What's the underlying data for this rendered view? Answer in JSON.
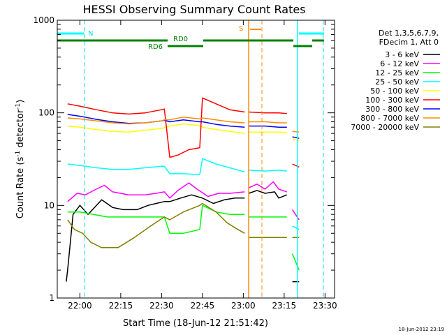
{
  "chart_data": {
    "type": "line",
    "title": "HESSI Observing Summary Count Rates",
    "xlabel": "Start Time (18-Jun-12 21:51:42)",
    "ylabel": "Count Rate (s",
    "ylabel_sup": "-1",
    "ylabel_mid": " detector",
    "ylabel_end": ")",
    "y_scale": "log",
    "ylim": [
      1,
      1000
    ],
    "xlim": [
      "21:51:42",
      "23:33:30"
    ],
    "x_ticks": [
      "22:00",
      "22:15",
      "22:30",
      "22:45",
      "23:00",
      "23:15",
      "23:30"
    ],
    "y_ticks": [
      "1",
      "10",
      "100",
      "1000"
    ],
    "grid": false,
    "legend_position": "right",
    "legend_header": [
      "Det 1,3,5,6,7,9,",
      "FDecim 1, Att 0"
    ],
    "timestamp": "18-Jun-2012 23:19",
    "annotations": {
      "night_label": "N",
      "saa_label": "S",
      "rd0_label": "RD0",
      "rd6_label": "RD6"
    },
    "series": [
      {
        "name": "3 - 6 keV",
        "color": "#000000",
        "points": [
          [
            "21:55:00",
            1.5
          ],
          [
            "21:55:30",
            2.0
          ],
          [
            "21:57:30",
            8.0
          ],
          [
            "22:00:00",
            10.0
          ],
          [
            "22:03:00",
            8.0
          ],
          [
            "22:08:00",
            11.5
          ],
          [
            "22:12:00",
            9.5
          ],
          [
            "22:16:00",
            9.0
          ],
          [
            "22:21:00",
            9.0
          ],
          [
            "22:25:00",
            10.0
          ],
          [
            "22:28:00",
            10.5
          ],
          [
            "22:31:00",
            11.0
          ],
          [
            "22:33:00",
            11.0
          ],
          [
            "22:37:00",
            12.0
          ],
          [
            "22:41:00",
            13.0
          ],
          [
            "22:45:00",
            12.0
          ],
          [
            "22:49:00",
            10.5
          ],
          [
            "22:53:00",
            11.5
          ],
          [
            "22:57:00",
            12.0
          ],
          [
            "23:00:30",
            12.0
          ],
          [
            "23:01:00",
            null
          ],
          [
            "23:02:00",
            13.5
          ],
          [
            "23:05:00",
            14.5
          ],
          [
            "23:08:00",
            13.5
          ],
          [
            "23:11:30",
            14.0
          ],
          [
            "23:13:00",
            12.0
          ],
          [
            "23:16:00",
            13.0
          ],
          [
            "23:17:00",
            null
          ],
          [
            "23:18:00",
            1.5
          ],
          [
            "23:20:30",
            1.5
          ]
        ]
      },
      {
        "name": "6 - 12 keV",
        "color": "#ff00ff",
        "points": [
          [
            "21:55:00",
            null
          ],
          [
            "21:55:30",
            11.0
          ],
          [
            "21:59:00",
            13.5
          ],
          [
            "22:02:00",
            13.0
          ],
          [
            "22:06:00",
            15.0
          ],
          [
            "22:09:00",
            16.5
          ],
          [
            "22:12:00",
            14.0
          ],
          [
            "22:18:00",
            13.0
          ],
          [
            "22:24:00",
            13.0
          ],
          [
            "22:28:00",
            13.5
          ],
          [
            "22:31:00",
            14.0
          ],
          [
            "22:33:00",
            12.0
          ],
          [
            "22:36:00",
            14.5
          ],
          [
            "22:40:00",
            17.5
          ],
          [
            "22:43:00",
            15.0
          ],
          [
            "22:47:00",
            12.5
          ],
          [
            "22:51:00",
            13.5
          ],
          [
            "22:55:00",
            13.5
          ],
          [
            "23:00:30",
            14.0
          ],
          [
            "23:01:00",
            null
          ],
          [
            "23:02:00",
            15.5
          ],
          [
            "23:05:00",
            17.0
          ],
          [
            "23:08:00",
            15.0
          ],
          [
            "23:11:00",
            18.0
          ],
          [
            "23:13:00",
            15.0
          ],
          [
            "23:16:00",
            14.0
          ],
          [
            "23:17:00",
            null
          ],
          [
            "23:18:00",
            9.0
          ],
          [
            "23:20:30",
            7.0
          ]
        ]
      },
      {
        "name": "12 - 25 keV",
        "color": "#00ff00",
        "points": [
          [
            "21:55:00",
            null
          ],
          [
            "21:55:30",
            8.5
          ],
          [
            "22:00:00",
            8.5
          ],
          [
            "22:05:00",
            8.0
          ],
          [
            "22:10:00",
            7.5
          ],
          [
            "22:15:00",
            7.5
          ],
          [
            "22:20:00",
            7.5
          ],
          [
            "22:25:00",
            7.5
          ],
          [
            "22:30:00",
            7.5
          ],
          [
            "22:31:00",
            7.5
          ],
          [
            "22:33:00",
            5.0
          ],
          [
            "22:38:00",
            5.0
          ],
          [
            "22:44:00",
            5.5
          ],
          [
            "22:45:00",
            10.0
          ],
          [
            "22:50:00",
            8.5
          ],
          [
            "22:55:00",
            8.0
          ],
          [
            "23:00:30",
            8.0
          ],
          [
            "23:01:00",
            null
          ],
          [
            "23:02:00",
            7.5
          ],
          [
            "23:08:00",
            7.5
          ],
          [
            "23:13:00",
            7.5
          ],
          [
            "23:16:00",
            7.5
          ],
          [
            "23:17:00",
            null
          ],
          [
            "23:18:00",
            3.0
          ],
          [
            "23:20:30",
            2.0
          ]
        ]
      },
      {
        "name": "25 - 50 keV",
        "color": "#00ffff",
        "points": [
          [
            "21:55:00",
            null
          ],
          [
            "21:55:30",
            28.0
          ],
          [
            "22:00:00",
            27.0
          ],
          [
            "22:06:00",
            25.5
          ],
          [
            "22:12:00",
            24.5
          ],
          [
            "22:18:00",
            24.5
          ],
          [
            "22:24:00",
            25.5
          ],
          [
            "22:30:00",
            26.5
          ],
          [
            "22:31:00",
            26.5
          ],
          [
            "22:33:00",
            22.0
          ],
          [
            "22:38:00",
            22.0
          ],
          [
            "22:44:00",
            21.5
          ],
          [
            "22:45:00",
            32.0
          ],
          [
            "22:50:00",
            28.0
          ],
          [
            "22:55:00",
            25.5
          ],
          [
            "23:00:30",
            23.0
          ],
          [
            "23:01:00",
            null
          ],
          [
            "23:02:00",
            24.0
          ],
          [
            "23:08:00",
            23.5
          ],
          [
            "23:13:00",
            24.0
          ],
          [
            "23:16:00",
            23.5
          ],
          [
            "23:17:00",
            null
          ],
          [
            "23:18:00",
            6.0
          ],
          [
            "23:20:30",
            5.5
          ]
        ]
      },
      {
        "name": "50 - 100 keV",
        "color": "#ffff00",
        "points": [
          [
            "21:55:00",
            null
          ],
          [
            "21:55:30",
            72.0
          ],
          [
            "22:00:00",
            70.0
          ],
          [
            "22:06:00",
            66.0
          ],
          [
            "22:12:00",
            63.0
          ],
          [
            "22:18:00",
            62.0
          ],
          [
            "22:24:00",
            65.0
          ],
          [
            "22:30:00",
            68.0
          ],
          [
            "22:31:00",
            69.0
          ],
          [
            "22:33:00",
            72.0
          ],
          [
            "22:38:00",
            76.0
          ],
          [
            "22:44:00",
            73.0
          ],
          [
            "22:45:00",
            70.0
          ],
          [
            "22:50:00",
            66.0
          ],
          [
            "22:55:00",
            63.0
          ],
          [
            "23:00:30",
            60.0
          ],
          [
            "23:01:00",
            null
          ],
          [
            "23:02:00",
            62.0
          ],
          [
            "23:08:00",
            62.0
          ],
          [
            "23:13:00",
            62.0
          ],
          [
            "23:16:00",
            61.0
          ],
          [
            "23:17:00",
            null
          ],
          [
            "23:18:00",
            52.0
          ],
          [
            "23:20:30",
            50.0
          ]
        ]
      },
      {
        "name": "100 - 300 keV",
        "color": "#ff0000",
        "points": [
          [
            "21:55:00",
            null
          ],
          [
            "21:55:30",
            125.0
          ],
          [
            "22:00:00",
            118.0
          ],
          [
            "22:06:00",
            108.0
          ],
          [
            "22:12:00",
            100.0
          ],
          [
            "22:18:00",
            97.0
          ],
          [
            "22:24:00",
            100.0
          ],
          [
            "22:30:00",
            108.0
          ],
          [
            "22:31:00",
            110.0
          ],
          [
            "22:33:00",
            33.0
          ],
          [
            "22:36:00",
            35.0
          ],
          [
            "22:40:00",
            40.0
          ],
          [
            "22:44:00",
            42.0
          ],
          [
            "22:45:00",
            145.0
          ],
          [
            "22:50:00",
            125.0
          ],
          [
            "22:55:00",
            108.0
          ],
          [
            "23:00:30",
            102.0
          ],
          [
            "23:01:00",
            null
          ],
          [
            "23:02:00",
            102.0
          ],
          [
            "23:08:00",
            100.0
          ],
          [
            "23:13:00",
            100.0
          ],
          [
            "23:16:00",
            98.0
          ],
          [
            "23:17:00",
            null
          ],
          [
            "23:18:00",
            28.0
          ],
          [
            "23:20:30",
            26.0
          ]
        ]
      },
      {
        "name": "300 - 800 keV",
        "color": "#0000ff",
        "points": [
          [
            "21:55:00",
            null
          ],
          [
            "21:55:30",
            96.0
          ],
          [
            "22:00:00",
            92.0
          ],
          [
            "22:06:00",
            85.0
          ],
          [
            "22:12:00",
            80.0
          ],
          [
            "22:18:00",
            77.0
          ],
          [
            "22:24:00",
            78.0
          ],
          [
            "22:30:00",
            82.0
          ],
          [
            "22:31:00",
            83.0
          ],
          [
            "22:33:00",
            80.0
          ],
          [
            "22:38:00",
            84.0
          ],
          [
            "22:44:00",
            80.0
          ],
          [
            "22:45:00",
            80.0
          ],
          [
            "22:50:00",
            75.0
          ],
          [
            "22:55:00",
            72.0
          ],
          [
            "23:00:30",
            70.0
          ],
          [
            "23:01:00",
            null
          ],
          [
            "23:02:00",
            72.0
          ],
          [
            "23:08:00",
            72.0
          ],
          [
            "23:13:00",
            70.0
          ],
          [
            "23:16:00",
            70.0
          ],
          [
            "23:17:00",
            null
          ],
          [
            "23:18:00",
            55.0
          ],
          [
            "23:20:30",
            53.0
          ]
        ]
      },
      {
        "name": "800 - 7000 keV",
        "color": "#ff8c00",
        "points": [
          [
            "21:55:00",
            null
          ],
          [
            "21:55:30",
            88.0
          ],
          [
            "22:00:00",
            86.0
          ],
          [
            "22:06:00",
            82.0
          ],
          [
            "22:12:00",
            78.0
          ],
          [
            "22:18:00",
            76.0
          ],
          [
            "22:24:00",
            78.0
          ],
          [
            "22:30:00",
            82.0
          ],
          [
            "22:31:00",
            84.0
          ],
          [
            "22:33:00",
            84.0
          ],
          [
            "22:38:00",
            90.0
          ],
          [
            "22:44:00",
            86.0
          ],
          [
            "22:45:00",
            88.0
          ],
          [
            "22:50:00",
            84.0
          ],
          [
            "22:55:00",
            80.0
          ],
          [
            "23:00:30",
            78.0
          ],
          [
            "23:01:00",
            null
          ],
          [
            "23:02:00",
            80.0
          ],
          [
            "23:08:00",
            80.0
          ],
          [
            "23:13:00",
            78.0
          ],
          [
            "23:16:00",
            78.0
          ],
          [
            "23:17:00",
            null
          ],
          [
            "23:18:00",
            63.0
          ],
          [
            "23:20:30",
            62.0
          ]
        ]
      },
      {
        "name": "7000 - 20000 keV",
        "color": "#808000",
        "points": [
          [
            "21:55:00",
            null
          ],
          [
            "21:55:30",
            7.0
          ],
          [
            "21:58:00",
            5.5
          ],
          [
            "22:01:00",
            5.0
          ],
          [
            "22:04:00",
            4.0
          ],
          [
            "22:08:00",
            3.5
          ],
          [
            "22:14:00",
            3.5
          ],
          [
            "22:20:00",
            4.5
          ],
          [
            "22:26:00",
            6.0
          ],
          [
            "22:31:00",
            7.5
          ],
          [
            "22:33:00",
            7.0
          ],
          [
            "22:38:00",
            8.5
          ],
          [
            "22:44:00",
            10.0
          ],
          [
            "22:45:00",
            10.5
          ],
          [
            "22:50:00",
            8.5
          ],
          [
            "22:54:00",
            6.5
          ],
          [
            "22:58:00",
            5.5
          ],
          [
            "23:00:30",
            5.0
          ],
          [
            "23:01:00",
            null
          ],
          [
            "23:02:00",
            4.5
          ],
          [
            "23:08:00",
            4.5
          ],
          [
            "23:13:00",
            4.5
          ],
          [
            "23:16:00",
            4.5
          ],
          [
            "23:17:00",
            null
          ],
          [
            "23:18:00",
            4.5
          ],
          [
            "23:20:30",
            4.5
          ]
        ]
      }
    ]
  }
}
